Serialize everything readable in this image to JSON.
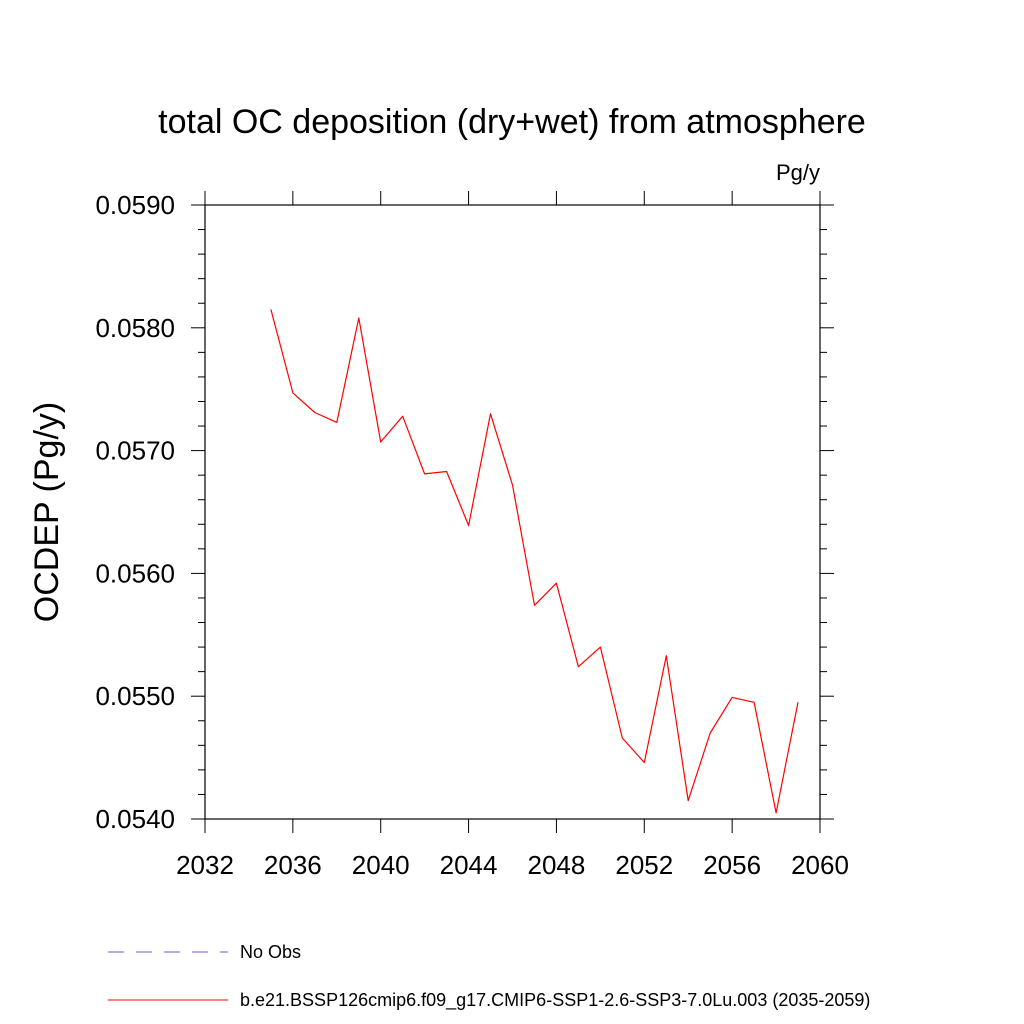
{
  "chart_data": {
    "type": "line",
    "title": "total OC deposition (dry+wet) from atmosphere",
    "units": "Pg/y",
    "xlabel": "",
    "ylabel": "OCDEP  (Pg/y)",
    "xlim": [
      2032,
      2060
    ],
    "ylim": [
      0.054,
      0.059
    ],
    "x_ticks": [
      2032,
      2036,
      2040,
      2044,
      2048,
      2052,
      2056,
      2060
    ],
    "x_tick_labels": [
      "2032",
      "2036",
      "2040",
      "2044",
      "2048",
      "2052",
      "2056",
      "2060"
    ],
    "y_ticks": [
      0.054,
      0.055,
      0.056,
      0.057,
      0.058,
      0.059
    ],
    "y_tick_labels": [
      "0.0540",
      "0.0550",
      "0.0560",
      "0.0570",
      "0.0580",
      "0.0590"
    ],
    "grid": false,
    "series": [
      {
        "name": "b.e21.BSSP126cmip6.f09_g17.CMIP6-SSP1-2.6-SSP3-7.0Lu.003 (2035-2059)",
        "color": "#ff0000",
        "style": "solid",
        "x": [
          2035,
          2036,
          2037,
          2038,
          2039,
          2040,
          2041,
          2042,
          2043,
          2044,
          2045,
          2046,
          2047,
          2048,
          2049,
          2050,
          2051,
          2052,
          2053,
          2054,
          2055,
          2056,
          2057,
          2058,
          2059
        ],
        "values": [
          0.05815,
          0.05747,
          0.05731,
          0.05723,
          0.05808,
          0.05707,
          0.05728,
          0.05681,
          0.05683,
          0.05639,
          0.0573,
          0.05672,
          0.05574,
          0.05592,
          0.05524,
          0.0554,
          0.05466,
          0.05446,
          0.05533,
          0.05415,
          0.0547,
          0.05499,
          0.05495,
          0.05405,
          0.05495
        ]
      }
    ],
    "legend": [
      {
        "label": "No Obs",
        "color": "#6a5acd",
        "style": "dashed"
      },
      {
        "label": "b.e21.BSSP126cmip6.f09_g17.CMIP6-SSP1-2.6-SSP3-7.0Lu.003 (2035-2059)",
        "color": "#ff0000",
        "style": "solid"
      }
    ],
    "legend_position": "bottom"
  }
}
